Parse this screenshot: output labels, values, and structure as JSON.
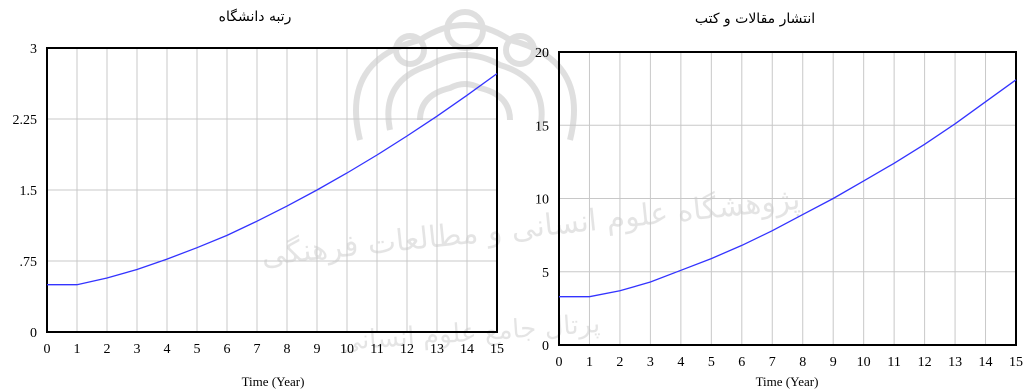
{
  "chart_data": [
    {
      "type": "line",
      "title": "رتبه دانشگاه",
      "xlabel": "Time (Year)",
      "ylabel": "",
      "x_ticks": [
        "0",
        "1",
        "2",
        "3",
        "4",
        "5",
        "6",
        "7",
        "8",
        "9",
        "10",
        "11",
        "12",
        "13",
        "14",
        "15"
      ],
      "y_ticks": [
        "0",
        ".75",
        "1.5",
        "2.25",
        "3"
      ],
      "xlim": [
        0,
        15
      ],
      "ylim": [
        0,
        3
      ],
      "grid": true,
      "series": [
        {
          "color": "#3333ff",
          "x": [
            0,
            1,
            2,
            3,
            4,
            5,
            6,
            7,
            8,
            9,
            10,
            11,
            12,
            13,
            14,
            15
          ],
          "y": [
            0.5,
            0.5,
            0.57,
            0.66,
            0.77,
            0.89,
            1.02,
            1.17,
            1.33,
            1.5,
            1.68,
            1.87,
            2.07,
            2.28,
            2.5,
            2.73
          ]
        }
      ]
    },
    {
      "type": "line",
      "title": "انتشار مقالات و کتب",
      "xlabel": "Time (Year)",
      "ylabel": "",
      "x_ticks": [
        "0",
        "1",
        "2",
        "3",
        "4",
        "5",
        "6",
        "7",
        "8",
        "9",
        "10",
        "11",
        "12",
        "13",
        "14",
        "15"
      ],
      "y_ticks": [
        "0",
        "5",
        "10",
        "15",
        "20"
      ],
      "xlim": [
        0,
        15
      ],
      "ylim": [
        0,
        20
      ],
      "grid": true,
      "series": [
        {
          "color": "#3333ff",
          "x": [
            0,
            1,
            2,
            3,
            4,
            5,
            6,
            7,
            8,
            9,
            10,
            11,
            12,
            13,
            14,
            15
          ],
          "y": [
            3.3,
            3.3,
            3.7,
            4.3,
            5.1,
            5.9,
            6.8,
            7.8,
            8.9,
            10,
            11.2,
            12.4,
            13.7,
            15.1,
            16.6,
            18.1
          ]
        }
      ]
    }
  ],
  "watermark": {
    "line1": "پژوهشگاه علوم انسانی و مطالعات فرهنگی",
    "line2": "پرتال جامع علوم انسانی"
  }
}
